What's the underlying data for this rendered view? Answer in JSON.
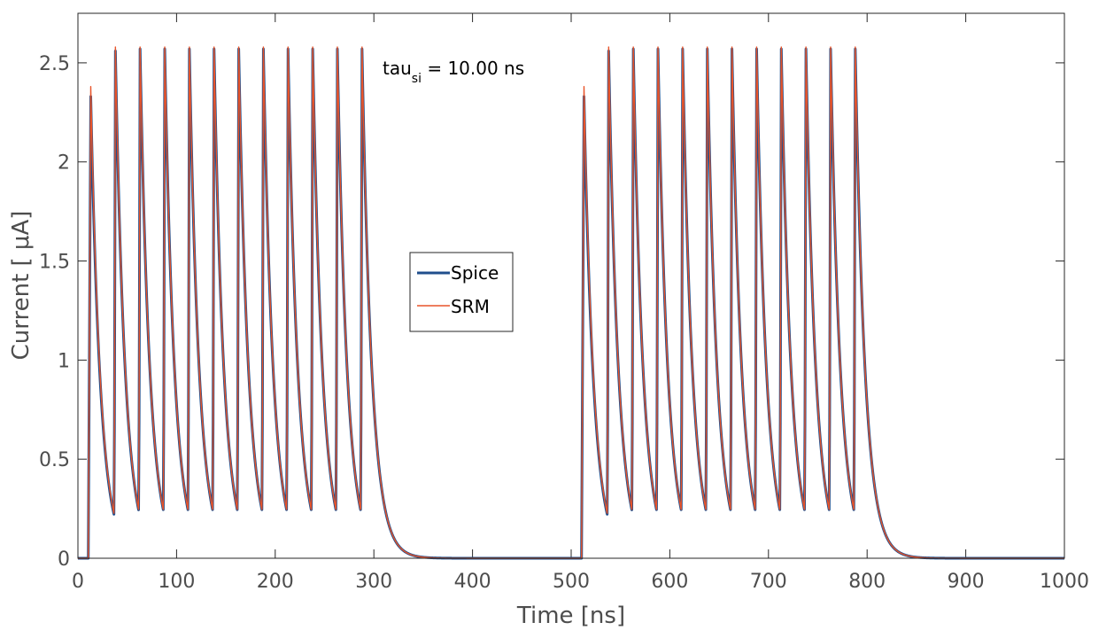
{
  "chart_data": {
    "type": "line",
    "xlabel": "Time [ns]",
    "ylabel": "Current [ μA]",
    "xlim": [
      0,
      1000
    ],
    "ylim": [
      0,
      2.75
    ],
    "x_ticks": [
      0,
      100,
      200,
      300,
      400,
      500,
      600,
      700,
      800,
      900,
      1000
    ],
    "x_tick_labels": [
      "0",
      "100",
      "200",
      "300",
      "400",
      "500",
      "600",
      "700",
      "800",
      "900",
      "1000"
    ],
    "y_ticks": [
      0,
      0.5,
      1,
      1.5,
      2,
      2.5
    ],
    "y_tick_labels": [
      "0",
      "0.5",
      "1",
      "1.5",
      "2",
      "2.5"
    ],
    "grid": false,
    "legend_position": "center",
    "annotation": {
      "base": "tau",
      "subscript": "si",
      "rest": " = 10.00 ns"
    },
    "spike_train": {
      "peak_times_burst1": [
        13,
        38,
        63,
        88,
        113,
        138,
        163,
        188,
        213,
        238,
        263,
        288
      ],
      "peak_times_burst2": [
        513,
        538,
        563,
        588,
        613,
        638,
        663,
        688,
        713,
        738,
        763,
        788
      ],
      "decay_tau_ns": 10,
      "peak_values_spice": [
        2.33,
        2.56,
        2.57,
        2.57,
        2.57,
        2.57,
        2.57,
        2.57,
        2.57,
        2.57,
        2.57,
        2.57
      ],
      "peak_values_srm": [
        2.38,
        2.58,
        2.58,
        2.58,
        2.58,
        2.58,
        2.58,
        2.58,
        2.58,
        2.58,
        2.58,
        2.58
      ],
      "trough_values": [
        0.28,
        0.31,
        0.31,
        0.31,
        0.31,
        0.31,
        0.31,
        0.31,
        0.31,
        0.31,
        0.31
      ]
    },
    "series": [
      {
        "name": "Spice",
        "color": "#1f4e8c",
        "line_width": 3
      },
      {
        "name": "SRM",
        "color": "#e8542a",
        "line_width": 1.4
      }
    ]
  }
}
